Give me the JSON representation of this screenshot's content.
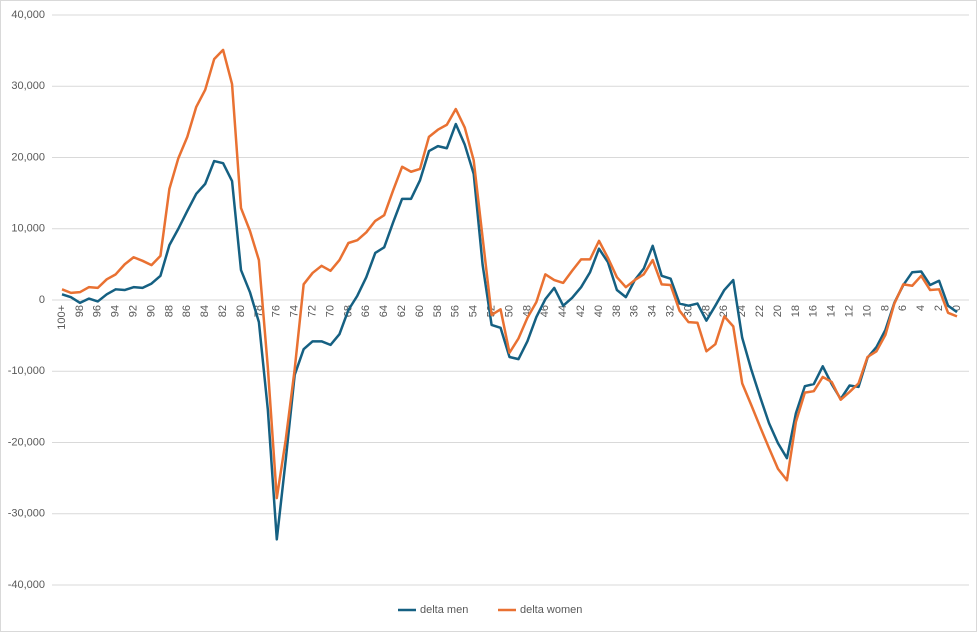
{
  "chart_data": {
    "type": "line",
    "categories": [
      "100+",
      null,
      "98",
      null,
      "96",
      null,
      "94",
      null,
      "92",
      null,
      "90",
      null,
      "88",
      null,
      "86",
      null,
      "84",
      null,
      "82",
      null,
      "80",
      null,
      "78",
      null,
      "76",
      null,
      "74",
      null,
      "72",
      null,
      "70",
      null,
      "68",
      null,
      "66",
      null,
      "64",
      null,
      "62",
      null,
      "60",
      null,
      "58",
      null,
      "56",
      null,
      "54",
      null,
      "52",
      null,
      "50",
      null,
      "48",
      null,
      "46",
      null,
      "44",
      null,
      "42",
      null,
      "40",
      null,
      "38",
      null,
      "36",
      null,
      "34",
      null,
      "32",
      null,
      "30",
      null,
      "28",
      null,
      "26",
      null,
      "24",
      null,
      "22",
      null,
      "20",
      null,
      "18",
      null,
      "16",
      null,
      "14",
      null,
      "12",
      null,
      "10",
      null,
      "8",
      null,
      "6",
      null,
      "4",
      null,
      "2",
      null,
      "0"
    ],
    "series": [
      {
        "name": "delta men",
        "color": "#156082",
        "values": [
          800,
          400,
          -400,
          200,
          -200,
          800,
          1500,
          1400,
          1800,
          1700,
          2300,
          3400,
          7700,
          10000,
          12500,
          14900,
          16300,
          19500,
          19200,
          16700,
          4200,
          1100,
          -3100,
          -15400,
          -33600,
          -22400,
          -10500,
          -6900,
          -5800,
          -5800,
          -6300,
          -4800,
          -1400,
          600,
          3200,
          6600,
          7400,
          10900,
          14200,
          14200,
          16800,
          20900,
          21600,
          21300,
          24700,
          21800,
          17700,
          4900,
          -3500,
          -3900,
          -8000,
          -8300,
          -5800,
          -2400,
          100,
          1700,
          -800,
          300,
          1800,
          3900,
          7200,
          5300,
          1400,
          400,
          2800,
          4400,
          7600,
          3400,
          3000,
          -500,
          -800,
          -500,
          -2900,
          -800,
          1400,
          2800,
          -5300,
          -9700,
          -13600,
          -17300,
          -20100,
          -22200,
          -15900,
          -12100,
          -11800,
          -9300,
          -11800,
          -13900,
          -12000,
          -12200,
          -8100,
          -6600,
          -4200,
          -400,
          2100,
          3900,
          4000,
          2100,
          2700,
          -800,
          -1700
        ]
      },
      {
        "name": "delta women",
        "color": "#e97132",
        "values": [
          1500,
          1000,
          1100,
          1800,
          1700,
          2900,
          3600,
          5000,
          6000,
          5500,
          4900,
          6200,
          15600,
          19900,
          22900,
          27100,
          29500,
          33800,
          35100,
          30300,
          12900,
          9700,
          5600,
          -9500,
          -27800,
          -19600,
          -9700,
          2200,
          3800,
          4800,
          4100,
          5600,
          8000,
          8400,
          9500,
          11100,
          11900,
          15400,
          18700,
          18000,
          18400,
          22900,
          23900,
          24600,
          26800,
          24200,
          19600,
          8700,
          -2100,
          -1300,
          -7400,
          -5400,
          -2500,
          -300,
          3600,
          2800,
          2400,
          4100,
          5700,
          5700,
          8300,
          5900,
          3200,
          1800,
          2800,
          3600,
          5600,
          2200,
          2100,
          -1500,
          -3100,
          -3200,
          -7200,
          -6200,
          -2300,
          -3700,
          -11700,
          -14700,
          -17800,
          -20800,
          -23700,
          -25300,
          -17100,
          -13000,
          -12800,
          -10800,
          -11500,
          -14000,
          -12900,
          -11700,
          -8000,
          -7200,
          -4900,
          -500,
          2200,
          2000,
          3400,
          1400,
          1500,
          -1800,
          -2300
        ]
      }
    ],
    "ylim": [
      -40000,
      40000
    ],
    "yticks": [
      {
        "value": -40000,
        "label": "-40,000"
      },
      {
        "value": -30000,
        "label": "-30,000"
      },
      {
        "value": -20000,
        "label": "-20,000"
      },
      {
        "value": -10000,
        "label": "-10,000"
      },
      0,
      {
        "value": 10000,
        "label": "10,000"
      },
      {
        "value": 20000,
        "label": "20,000"
      },
      {
        "value": 30000,
        "label": "30,000"
      },
      {
        "value": 40000,
        "label": "40,000"
      }
    ],
    "grid": true,
    "legend": "bottom"
  }
}
